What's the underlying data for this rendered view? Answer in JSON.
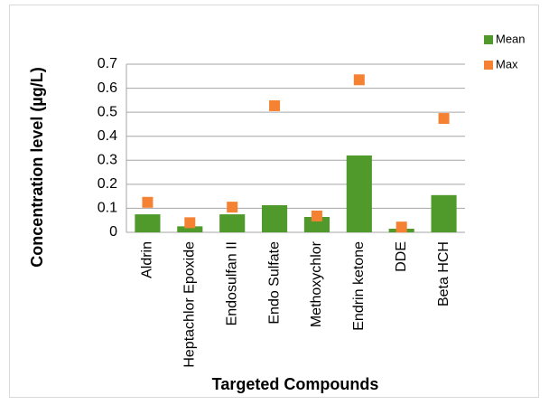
{
  "chart_data": {
    "type": "bar",
    "xlabel": "Targeted Compounds",
    "ylabel": "Concentration level (µg/L)",
    "categories": [
      "Aldrin",
      "Heptachlor Epoxide",
      "Endosulfan II",
      "Endo Sulfate",
      "Methoxychlor",
      "Endrin ketone",
      "DDE",
      "Beta HCH"
    ],
    "series": [
      {
        "name": "Mean",
        "color": "#4f9a2b",
        "values": [
          0.075,
          0.025,
          0.075,
          0.113,
          0.064,
          0.32,
          0.015,
          0.155
        ]
      },
      {
        "name": "Max",
        "color": "#f58232",
        "marker": "square",
        "values": [
          0.125,
          0.04,
          0.105,
          0.527,
          0.068,
          0.635,
          0.022,
          0.474
        ]
      }
    ],
    "ylim": [
      0,
      0.7
    ],
    "yticks": [
      0,
      0.1,
      0.2,
      0.3,
      0.4,
      0.5,
      0.6,
      0.7
    ],
    "grid": true,
    "legend": "top-right"
  }
}
